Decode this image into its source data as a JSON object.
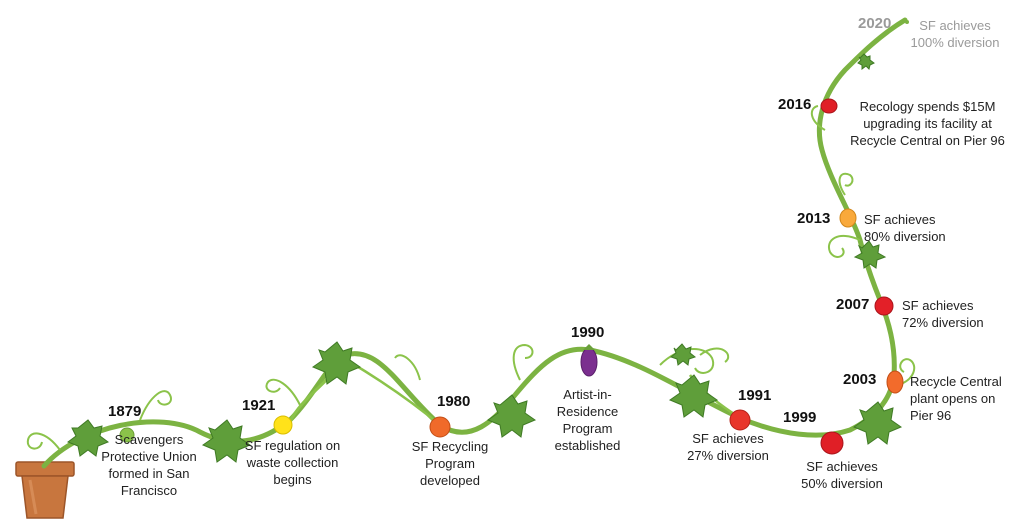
{
  "colors": {
    "vine": "#7cb342",
    "vine_dark": "#4e8a2a",
    "leaf": "#5f9e3a",
    "pot": "#c8763e",
    "pot_dark": "#9c5529",
    "faded_text": "#9a9a9a"
  },
  "milestones": [
    {
      "year": "1879",
      "text": "Scavengers\nProtective Union\nformed in San\nFrancisco",
      "fruit": "lime",
      "color": "#8bc34a"
    },
    {
      "year": "1921",
      "text": "SF regulation on\nwaste collection\nbegins",
      "fruit": "lemon",
      "color": "#ffe21a"
    },
    {
      "year": "1980",
      "text": "SF Recycling\nProgram\ndeveloped",
      "fruit": "orange-tomato",
      "color": "#f06a2a"
    },
    {
      "year": "1990",
      "text": "Artist-in-\nResidence\nProgram\nestablished",
      "fruit": "eggplant",
      "color": "#7b2f8f"
    },
    {
      "year": "1991",
      "text": "SF achieves\n27% diversion",
      "fruit": "tomato",
      "color": "#e8352b"
    },
    {
      "year": "1999",
      "text": "SF achieves\n50% diversion",
      "fruit": "tomato",
      "color": "#e01f26"
    },
    {
      "year": "2003",
      "text": "Recycle Central\nplant opens on\nPier 96",
      "fruit": "orange-pepper",
      "color": "#f26b2b"
    },
    {
      "year": "2007",
      "text": "SF achieves\n72% diversion",
      "fruit": "tomato",
      "color": "#e32028"
    },
    {
      "year": "2013",
      "text": "SF achieves\n80% diversion",
      "fruit": "yellow-pepper",
      "color": "#f9a93b"
    },
    {
      "year": "2016",
      "text": "Recology spends $15M\nupgrading its facility at\nRecycle Central on Pier 96",
      "fruit": "tomato",
      "color": "#e01f26"
    },
    {
      "year": "2020",
      "text": "SF achieves\n100% diversion",
      "fruit": "bud",
      "color": "#7cb342"
    }
  ]
}
